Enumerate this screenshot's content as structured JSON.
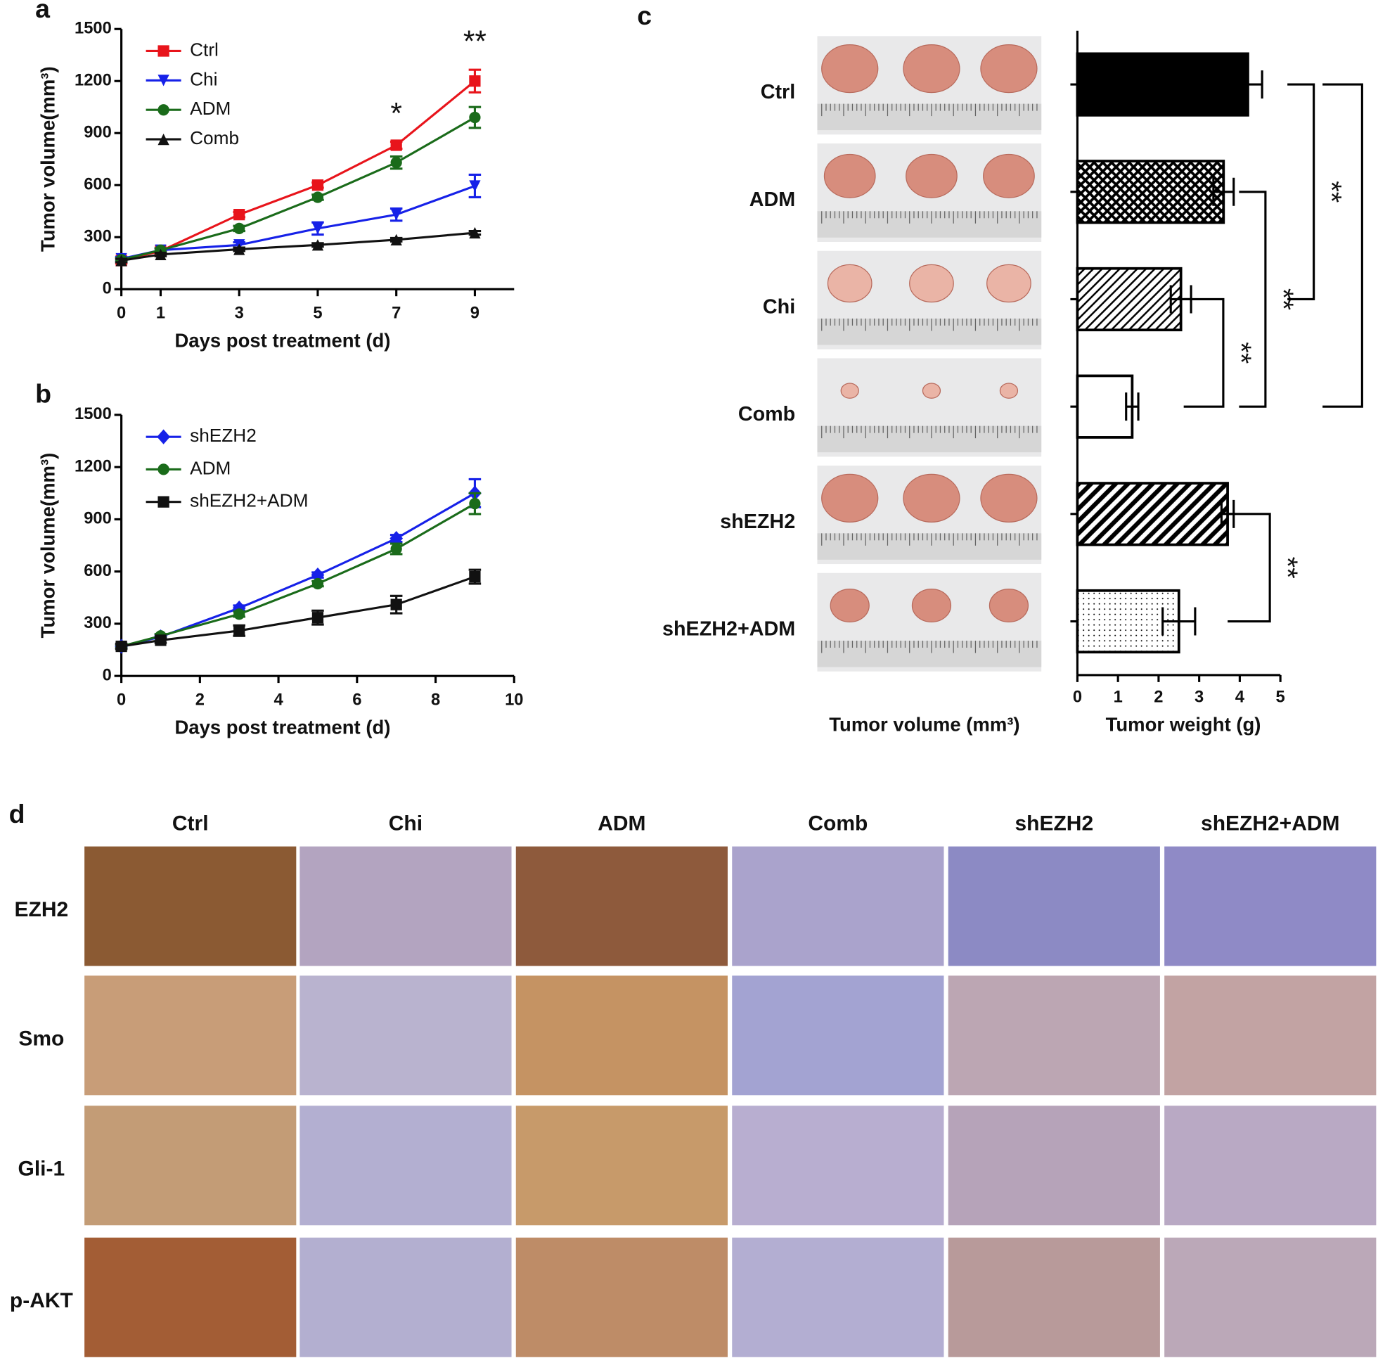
{
  "chart_data": [
    {
      "panel": "a",
      "type": "line",
      "xlabel": "Days post treatment (d)",
      "ylabel": "Tumor volume(mm³)",
      "x": [
        0,
        1,
        3,
        5,
        7,
        9
      ],
      "xlim": [
        0,
        10
      ],
      "xticks": [
        0,
        1,
        3,
        5,
        7,
        9
      ],
      "ylim": [
        0,
        1500
      ],
      "yticks": [
        0,
        300,
        600,
        900,
        1200,
        1500
      ],
      "legend": "upper left",
      "series": [
        {
          "name": "Ctrl",
          "color": "#e8141b",
          "marker": "square",
          "values": [
            165,
            220,
            430,
            600,
            830,
            1200
          ],
          "errors": [
            15,
            15,
            15,
            15,
            20,
            65
          ]
        },
        {
          "name": "Chi",
          "color": "#1621e8",
          "marker": "triangle-down",
          "values": [
            175,
            225,
            255,
            350,
            430,
            595
          ],
          "errors": [
            10,
            10,
            15,
            35,
            35,
            65
          ]
        },
        {
          "name": "ADM",
          "color": "#1a6b1a",
          "marker": "circle",
          "values": [
            170,
            225,
            350,
            530,
            730,
            990
          ],
          "errors": [
            10,
            10,
            15,
            15,
            35,
            60
          ]
        },
        {
          "name": "Comb",
          "color": "#111111",
          "marker": "triangle-up",
          "values": [
            165,
            200,
            230,
            255,
            285,
            325
          ],
          "errors": [
            10,
            10,
            10,
            10,
            10,
            10
          ]
        }
      ],
      "annotations": [
        {
          "text": "*",
          "x": 7
        },
        {
          "text": "**",
          "x": 9
        }
      ]
    },
    {
      "panel": "b",
      "type": "line",
      "xlabel": "Days post treatment (d)",
      "ylabel": "Tumor volume(mm³)",
      "x": [
        0,
        1,
        3,
        5,
        7,
        9
      ],
      "xlim": [
        0,
        10
      ],
      "xticks": [
        0,
        2,
        4,
        6,
        8,
        10
      ],
      "ylim": [
        0,
        1500
      ],
      "yticks": [
        0,
        300,
        600,
        900,
        1200,
        1500
      ],
      "legend": "upper left",
      "series": [
        {
          "name": "shEZH2",
          "color": "#1621e8",
          "marker": "diamond",
          "values": [
            170,
            225,
            390,
            580,
            790,
            1050
          ],
          "errors": [
            10,
            10,
            15,
            15,
            20,
            80
          ]
        },
        {
          "name": "ADM",
          "color": "#1a6b1a",
          "marker": "circle",
          "values": [
            170,
            230,
            355,
            530,
            730,
            990
          ],
          "errors": [
            10,
            10,
            15,
            15,
            30,
            60
          ]
        },
        {
          "name": "shEZH2+ADM",
          "color": "#111111",
          "marker": "square",
          "values": [
            170,
            205,
            260,
            335,
            410,
            570
          ],
          "errors": [
            15,
            15,
            30,
            40,
            50,
            40
          ]
        }
      ]
    },
    {
      "panel": "c",
      "type": "bar",
      "orientation": "horizontal",
      "xlabel": "Tumor weight (g)",
      "image_caption": "Tumor volume (mm³)",
      "categories": [
        "Ctrl",
        "ADM",
        "Chi",
        "Comb",
        "shEZH2",
        "shEZH2+ADM"
      ],
      "values": [
        4.2,
        3.6,
        2.55,
        1.35,
        3.7,
        2.5
      ],
      "errors": [
        0.35,
        0.25,
        0.25,
        0.15,
        0.15,
        0.4
      ],
      "patterns": [
        "solid",
        "crosshatch",
        "diagonal",
        "none",
        "diagonal-bold",
        "dots"
      ],
      "color": "#000000",
      "xlim": [
        0,
        5
      ],
      "xticks": [
        0,
        1,
        2,
        3,
        4,
        5
      ],
      "significance": [
        {
          "pair": [
            2,
            3
          ],
          "label": "**"
        },
        {
          "pair": [
            1,
            3
          ],
          "label": "**"
        },
        {
          "pair": [
            0,
            2
          ],
          "label": "**"
        },
        {
          "pair": [
            0,
            3
          ],
          "label": "**"
        },
        {
          "pair": [
            4,
            5
          ],
          "label": "**"
        }
      ]
    }
  ],
  "ihc": {
    "label": "d",
    "columns": [
      "Ctrl",
      "Chi",
      "ADM",
      "Comb",
      "shEZH2",
      "shEZH2+ADM"
    ],
    "rows": [
      "EZH2",
      "Smo",
      "Gli-1",
      "p-AKT"
    ]
  }
}
